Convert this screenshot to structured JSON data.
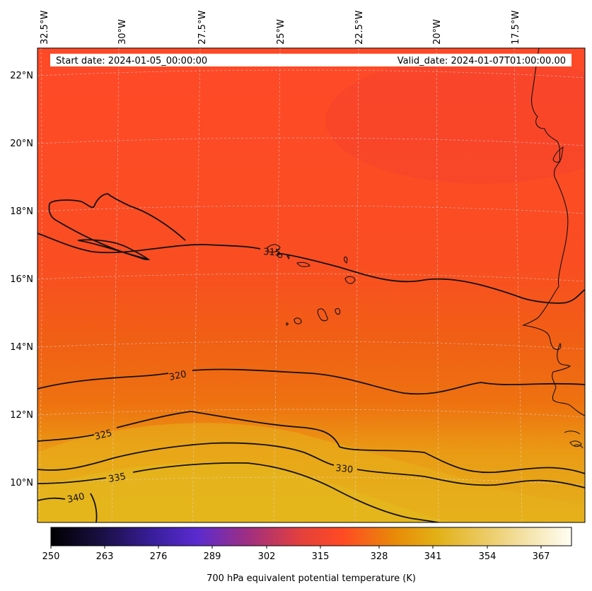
{
  "map": {
    "lon_labels": [
      "32.5°W",
      "30°W",
      "27.5°W",
      "25°W",
      "22.5°W",
      "20°W",
      "17.5°W"
    ],
    "lat_labels": [
      "22°N",
      "20°N",
      "18°N",
      "16°N",
      "14°N",
      "12°N",
      "10°N"
    ],
    "start_date": "Start date: 2024-01-05_00:00:00",
    "valid_date": "Valid_date: 2024-01-07T01:00:00.00",
    "contour_labels": [
      "315",
      "320",
      "325",
      "330",
      "335",
      "340"
    ],
    "colors": {
      "north": "#ff4a26",
      "mid": "#ef6412",
      "south": "#e8b91a",
      "contour": "#111111",
      "coast": "#111111"
    }
  },
  "colorbar": {
    "label": "700 hPa equivalent potential temperature (K)",
    "ticks": [
      "250",
      "263",
      "276",
      "289",
      "302",
      "315",
      "328",
      "341",
      "354",
      "367"
    ],
    "colors": [
      "#000000",
      "#1a1040",
      "#3a1f9a",
      "#5a2bd0",
      "#9a2f86",
      "#e8403a",
      "#ff4a26",
      "#e8a00a",
      "#e8c030",
      "#f5eab0",
      "#fffef2"
    ]
  }
}
